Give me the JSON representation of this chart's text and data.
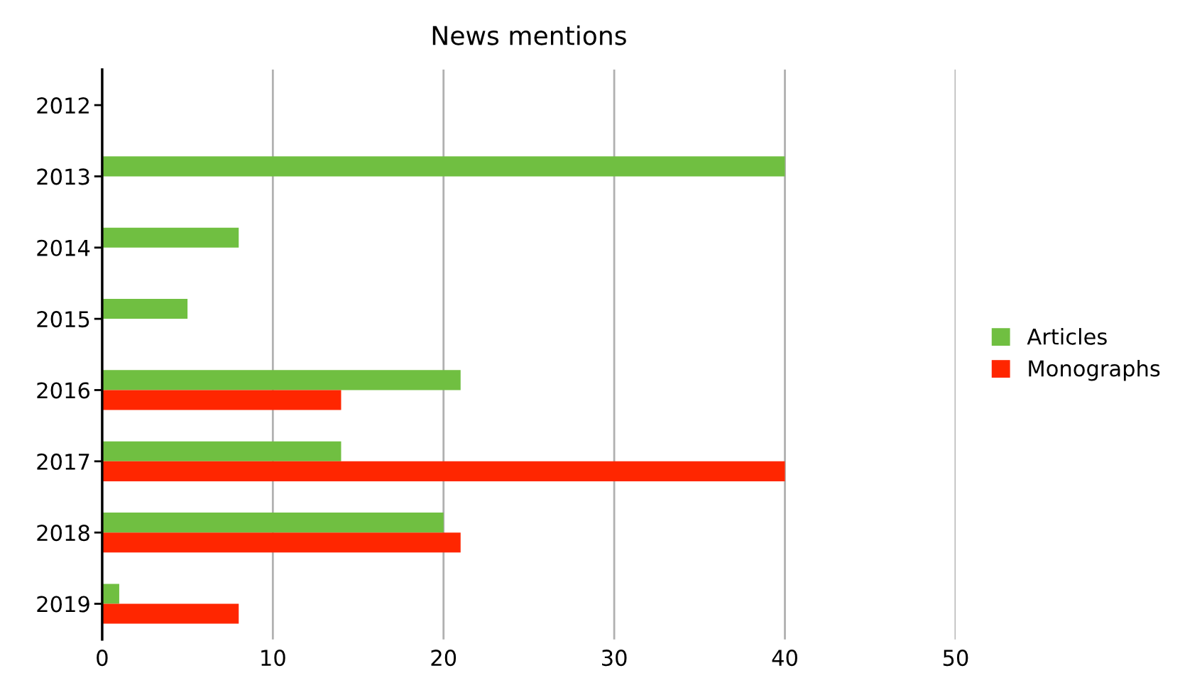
{
  "chart_data": {
    "type": "bar",
    "orientation": "horizontal",
    "title": "News mentions",
    "categories": [
      "2012",
      "2013",
      "2014",
      "2015",
      "2016",
      "2017",
      "2018",
      "2019"
    ],
    "series": [
      {
        "name": "Articles",
        "color": "#70bf41",
        "values": [
          0,
          40,
          8,
          5,
          21,
          14,
          20,
          1
        ]
      },
      {
        "name": "Monographs",
        "color": "#ff2600",
        "values": [
          0,
          0,
          0,
          0,
          14,
          40,
          21,
          8
        ]
      }
    ],
    "xlim": [
      0,
      50
    ],
    "xticks": [
      0,
      10,
      20,
      30,
      40,
      50
    ],
    "grid": "x",
    "legend": "right"
  }
}
